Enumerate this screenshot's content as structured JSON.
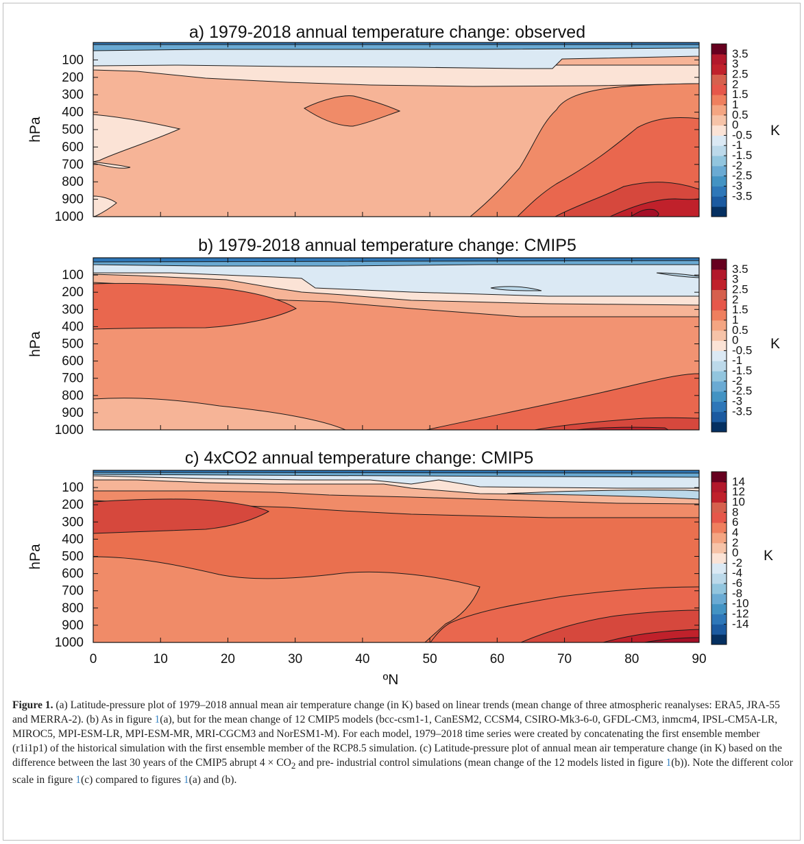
{
  "figure": {
    "xlabel": "ºN",
    "x_ticks": [
      "0",
      "10",
      "20",
      "30",
      "40",
      "50",
      "60",
      "70",
      "80",
      "90"
    ]
  },
  "caption": {
    "label": "Figure 1.",
    "text_a": " (a) Latitude-pressure plot of 1979–2018 annual mean air temperature change (in K) based on linear trends (mean change of three atmospheric reanalyses: ERA5, JRA-55 and MERRA-2). (b) As in figure ",
    "ref1": "1",
    "text_b": "(a), but for the mean change of 12 CMIP5 models (bcc-csm1-1, CanESM2, CCSM4, CSIRO-Mk3-6-0, GFDL-CM3, inmcm4, IPSL-CM5A-LR, MIROC5, MPI-ESM-LR, MPI-ESM-MR, MRI-CGCM3 and NorESM1-M). For each model, 1979–2018 time series were created by concatenating the first ensemble member (r1i1p1) of the historical simulation with the first ensemble member of the RCP8.5 simulation. (c) Latitude-pressure plot of annual mean air temperature change (in K) based on the difference between the last 30 years of the CMIP5 abrupt 4 × CO",
    "sub2": "2",
    "text_c": " and pre- industrial control simulations (mean change of the 12 models listed in figure ",
    "ref2": "1",
    "text_d": "(b)). Note the different color scale in figure ",
    "ref3": "1",
    "text_e": "(c) compared to figures ",
    "ref4": "1",
    "text_f": "(a) and (b)."
  },
  "chart_data": [
    {
      "type": "heatmap",
      "title": "a) 1979-2018 annual temperature change: observed",
      "ylabel": "hPa",
      "yticks": [
        "100",
        "200",
        "300",
        "400",
        "500",
        "600",
        "700",
        "800",
        "900",
        "1000"
      ],
      "xlim": [
        0,
        90
      ],
      "ylim": [
        1000,
        0
      ],
      "colorbar": {
        "unit": "K",
        "levels": [
          -4,
          -3.5,
          -3,
          -2.5,
          -2,
          -1.5,
          -1,
          -0.5,
          0,
          0.5,
          1,
          1.5,
          2,
          2.5,
          3,
          3.5,
          4
        ],
        "tick_labels": [
          "3.5",
          "3",
          "2.5",
          "2",
          "1.5",
          "1",
          "0.5",
          "0",
          "-0.5",
          "-1",
          "-1.5",
          "-2",
          "-2.5",
          "-3",
          "-3.5"
        ]
      },
      "colors": [
        "#053061",
        "#1b5aa0",
        "#2e77b8",
        "#4393c3",
        "#6aaad3",
        "#92c5de",
        "#bcd9ea",
        "#dbe9f4",
        "#fbe3d6",
        "#f6c3a8",
        "#f4a582",
        "#ef7f5e",
        "#e6574a",
        "#d6604d",
        "#c0212b",
        "#b2182b",
        "#67001f"
      ]
    },
    {
      "type": "heatmap",
      "title": "b) 1979-2018 annual temperature change: CMIP5",
      "ylabel": "hPa",
      "yticks": [
        "100",
        "200",
        "300",
        "400",
        "500",
        "600",
        "700",
        "800",
        "900",
        "1000"
      ],
      "xlim": [
        0,
        90
      ],
      "ylim": [
        1000,
        0
      ],
      "colorbar": {
        "unit": "K",
        "tick_labels": [
          "3.5",
          "3",
          "2.5",
          "2",
          "1.5",
          "1",
          "0.5",
          "0",
          "-0.5",
          "-1",
          "-1.5",
          "-2",
          "-2.5",
          "-3",
          "-3.5"
        ]
      }
    },
    {
      "type": "heatmap",
      "title": "c) 4xCO2 annual temperature change: CMIP5",
      "ylabel": "hPa",
      "yticks": [
        "100",
        "200",
        "300",
        "400",
        "500",
        "600",
        "700",
        "800",
        "900",
        "1000"
      ],
      "xlim": [
        0,
        90
      ],
      "ylim": [
        1000,
        0
      ],
      "colorbar": {
        "unit": "K",
        "tick_labels": [
          "14",
          "12",
          "10",
          "8",
          "6",
          "4",
          "2",
          "0",
          "-2",
          "-4",
          "-6",
          "-8",
          "-10",
          "-12",
          "-14"
        ]
      }
    }
  ]
}
